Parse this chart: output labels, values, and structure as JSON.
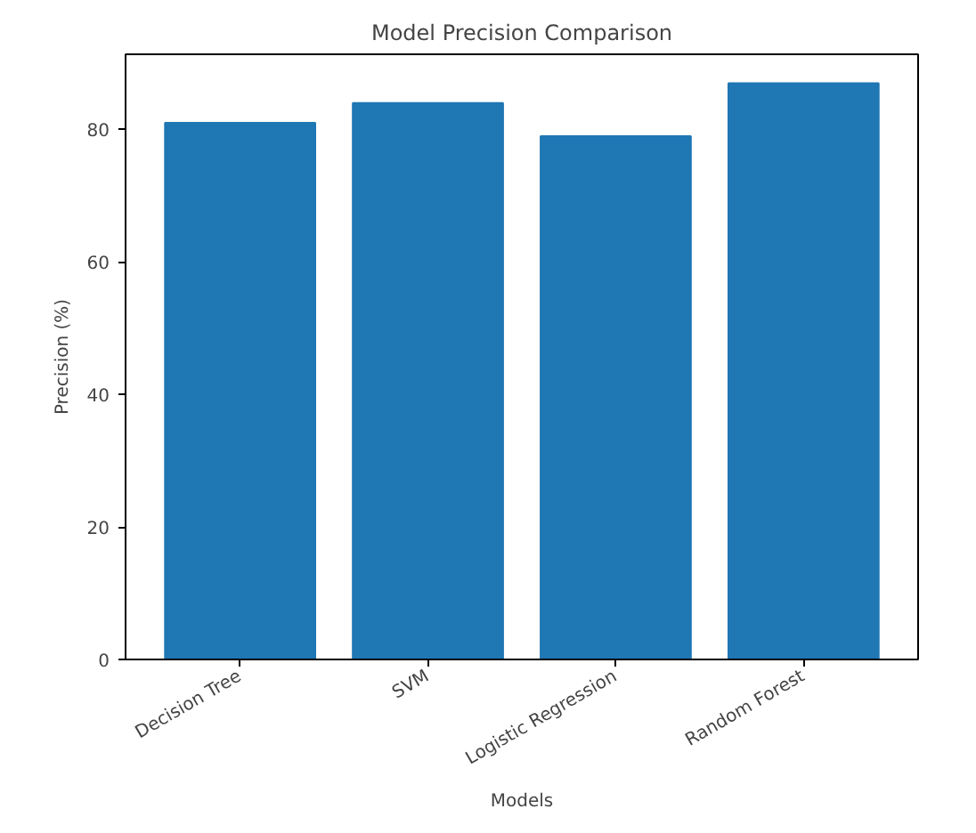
{
  "chart_data": {
    "type": "bar",
    "title": "Model Precision Comparison",
    "xlabel": "Models",
    "ylabel": "Precision (%)",
    "categories": [
      "Decision Tree",
      "SVM",
      "Logistic Regression",
      "Random Forest"
    ],
    "values": [
      81,
      84,
      79,
      87
    ],
    "color": "#1f77b4",
    "ylim": [
      0,
      91.35
    ],
    "yticks": [
      0,
      20,
      40,
      60,
      80
    ],
    "grid": false
  }
}
